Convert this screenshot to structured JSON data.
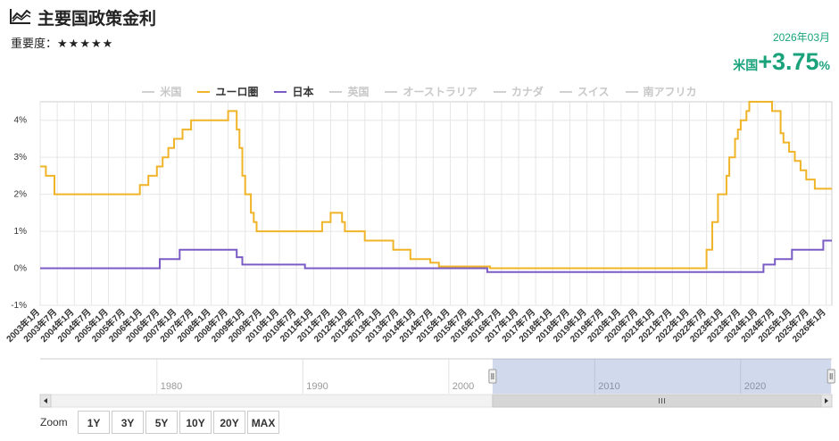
{
  "header": {
    "title": "主要国政策金利",
    "importance_label": "重要度：",
    "importance_stars": "★★★★★",
    "date": "2026年03月",
    "latest_label": "米国",
    "latest_value": "+3.75",
    "latest_unit": "%",
    "accent_color": "#1aa37b",
    "icon": "line-chart-icon"
  },
  "legend": [
    {
      "name": "米国",
      "active": false,
      "color": "#d0d0d0"
    },
    {
      "name": "ユーロ圏",
      "active": true,
      "color": "#f0b429"
    },
    {
      "name": "日本",
      "active": true,
      "color": "#7b5cc4"
    },
    {
      "name": "英国",
      "active": false,
      "color": "#d0d0d0"
    },
    {
      "name": "オーストラリア",
      "active": false,
      "color": "#d0d0d0"
    },
    {
      "name": "カナダ",
      "active": false,
      "color": "#d0d0d0"
    },
    {
      "name": "スイス",
      "active": false,
      "color": "#d0d0d0"
    },
    {
      "name": "南アフリカ",
      "active": false,
      "color": "#d0d0d0"
    }
  ],
  "chart_data": {
    "type": "line",
    "title": "主要国政策金利",
    "ylabel": "",
    "xlabel": "",
    "ylim": [
      -1.0,
      4.5
    ],
    "yticks": [
      "-1%",
      "0%",
      "1%",
      "2%",
      "3%",
      "4%"
    ],
    "y_tick_values": [
      -1,
      0,
      1,
      2,
      3,
      4
    ],
    "xlim": [
      "2003-01",
      "2026-03"
    ],
    "x_tick_labels": [
      "2003年1月",
      "2003年7月",
      "2004年1月",
      "2004年7月",
      "2005年1月",
      "2005年7月",
      "2006年1月",
      "2006年7月",
      "2007年1月",
      "2007年7月",
      "2008年1月",
      "2008年7月",
      "2009年1月",
      "2009年7月",
      "2010年1月",
      "2010年7月",
      "2011年1月",
      "2011年7月",
      "2012年1月",
      "2012年7月",
      "2013年1月",
      "2013年7月",
      "2014年1月",
      "2014年7月",
      "2015年1月",
      "2015年7月",
      "2016年1月",
      "2016年7月",
      "2017年1月",
      "2017年7月",
      "2018年1月",
      "2018年7月",
      "2019年1月",
      "2019年7月",
      "2020年1月",
      "2020年7月",
      "2021年1月",
      "2021年7月",
      "2022年1月",
      "2022年7月",
      "2023年1月",
      "2023年7月",
      "2024年1月",
      "2024年7月",
      "2025年1月",
      "2025年7月",
      "2026年1月"
    ],
    "grid": true,
    "series": [
      {
        "name": "ユーロ圏",
        "color": "#f0b429",
        "points": [
          [
            "2003-01",
            2.75
          ],
          [
            "2003-03",
            2.5
          ],
          [
            "2003-06",
            2.0
          ],
          [
            "2005-12",
            2.25
          ],
          [
            "2006-03",
            2.5
          ],
          [
            "2006-06",
            2.75
          ],
          [
            "2006-08",
            3.0
          ],
          [
            "2006-10",
            3.25
          ],
          [
            "2006-12",
            3.5
          ],
          [
            "2007-03",
            3.75
          ],
          [
            "2007-06",
            4.0
          ],
          [
            "2008-07",
            4.25
          ],
          [
            "2008-10",
            3.75
          ],
          [
            "2008-11",
            3.25
          ],
          [
            "2008-12",
            2.5
          ],
          [
            "2009-01",
            2.0
          ],
          [
            "2009-03",
            1.5
          ],
          [
            "2009-04",
            1.25
          ],
          [
            "2009-05",
            1.0
          ],
          [
            "2011-04",
            1.25
          ],
          [
            "2011-07",
            1.5
          ],
          [
            "2011-11",
            1.25
          ],
          [
            "2011-12",
            1.0
          ],
          [
            "2012-07",
            0.75
          ],
          [
            "2013-05",
            0.5
          ],
          [
            "2013-11",
            0.25
          ],
          [
            "2014-06",
            0.15
          ],
          [
            "2014-09",
            0.05
          ],
          [
            "2016-03",
            0.0
          ],
          [
            "2022-07",
            0.5
          ],
          [
            "2022-09",
            1.25
          ],
          [
            "2022-11",
            2.0
          ],
          [
            "2023-02",
            2.5
          ],
          [
            "2023-03",
            3.0
          ],
          [
            "2023-05",
            3.5
          ],
          [
            "2023-06",
            3.75
          ],
          [
            "2023-07",
            4.0
          ],
          [
            "2023-09",
            4.25
          ],
          [
            "2023-10",
            4.5
          ],
          [
            "2024-06",
            4.25
          ],
          [
            "2024-09",
            3.65
          ],
          [
            "2024-10",
            3.4
          ],
          [
            "2024-12",
            3.15
          ],
          [
            "2025-02",
            2.9
          ],
          [
            "2025-04",
            2.65
          ],
          [
            "2025-06",
            2.4
          ],
          [
            "2025-09",
            2.15
          ],
          [
            "2026-03",
            2.15
          ]
        ]
      },
      {
        "name": "日本",
        "color": "#7b5cc4",
        "points": [
          [
            "2003-01",
            0.0
          ],
          [
            "2006-07",
            0.25
          ],
          [
            "2007-02",
            0.5
          ],
          [
            "2008-10",
            0.3
          ],
          [
            "2008-12",
            0.1
          ],
          [
            "2010-10",
            0.0
          ],
          [
            "2016-02",
            -0.1
          ],
          [
            "2024-03",
            0.1
          ],
          [
            "2024-07",
            0.25
          ],
          [
            "2025-01",
            0.5
          ],
          [
            "2025-12",
            0.75
          ],
          [
            "2026-03",
            0.75
          ]
        ]
      }
    ],
    "navigator": {
      "year_labels": [
        "1980",
        "1990",
        "2000",
        "2010",
        "2020"
      ],
      "selected_range": [
        "2003-01",
        "2026-03"
      ]
    }
  },
  "zoom": {
    "label": "Zoom",
    "buttons": [
      "1Y",
      "3Y",
      "5Y",
      "10Y",
      "20Y",
      "MAX"
    ]
  }
}
